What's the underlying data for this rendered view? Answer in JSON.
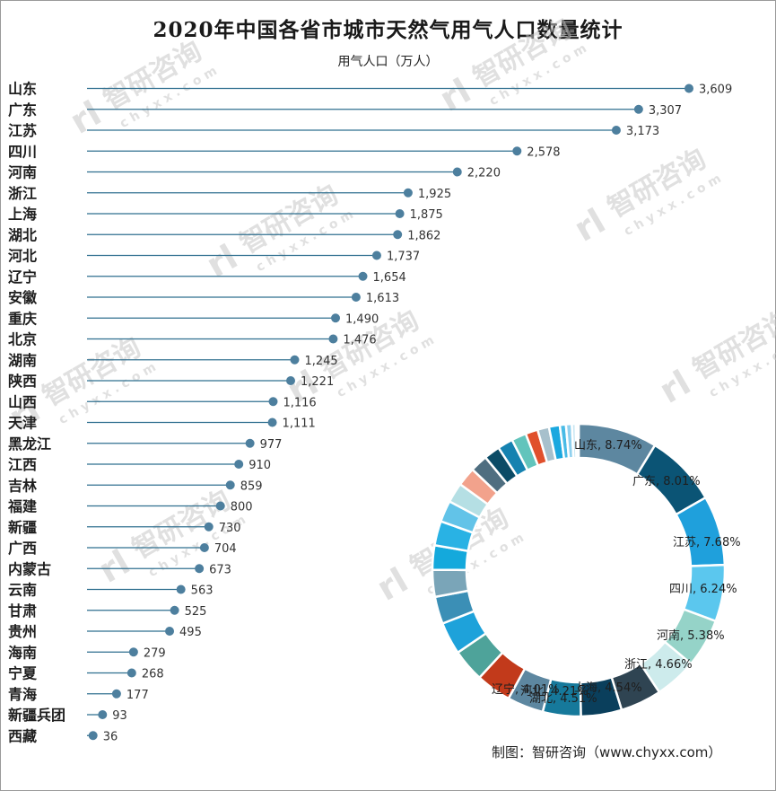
{
  "title": "2020年中国各省市城市天然气用气人口数量统计",
  "unit_label": "用气人口（万人）",
  "source": "制图：智研咨询（www.chyxx.com）",
  "watermark": {
    "brand": "智研咨询",
    "url": "c h y x x . c o m"
  },
  "colors": {
    "line": "#2f6f8f",
    "dot": "#4d7f9e",
    "donut": [
      "#5d87a0",
      "#0b5475",
      "#1fa0dc",
      "#5bc7ee",
      "#95d3c8",
      "#cdebec",
      "#2f4452",
      "#0a3f5c",
      "#16799b",
      "#5d87a0",
      "#c23a1b",
      "#4ea39a",
      "#1ea2da",
      "#3b8fb6",
      "#7aa5b8",
      "#14a9dc",
      "#29b2e4",
      "#62c3e8",
      "#b5dfe4",
      "#f2a28c",
      "#4f6e80",
      "#0b4b66",
      "#1582b0",
      "#62c4bc",
      "#e0502c",
      "#a7c0cc",
      "#1ba8df",
      "#49bbe6",
      "#8fd0ee",
      "#c8e6f2"
    ]
  },
  "chart_data": {
    "type": "bar",
    "categories": [
      "山东",
      "广东",
      "江苏",
      "四川",
      "河南",
      "浙江",
      "上海",
      "湖北",
      "河北",
      "辽宁",
      "安徽",
      "重庆",
      "北京",
      "湖南",
      "陕西",
      "山西",
      "天津",
      "黑龙江",
      "江西",
      "吉林",
      "福建",
      "新疆",
      "广西",
      "内蒙古",
      "云南",
      "甘肃",
      "贵州",
      "海南",
      "宁夏",
      "青海",
      "新疆兵团",
      "西藏"
    ],
    "values": [
      3609,
      3307,
      3173,
      2578,
      2220,
      1925,
      1875,
      1862,
      1737,
      1654,
      1613,
      1490,
      1476,
      1245,
      1221,
      1116,
      1111,
      977,
      910,
      859,
      800,
      730,
      704,
      673,
      563,
      525,
      495,
      279,
      268,
      177,
      93,
      36
    ],
    "value_labels": [
      "3,609",
      "3,307",
      "3,173",
      "2,578",
      "2,220",
      "1,925",
      "1,875",
      "1,862",
      "1,737",
      "1,654",
      "1,613",
      "1,490",
      "1,476",
      "1,245",
      "1,221",
      "1,116",
      "1,111",
      "977",
      "910",
      "859",
      "800",
      "730",
      "704",
      "673",
      "563",
      "525",
      "495",
      "279",
      "268",
      "177",
      "93",
      "36"
    ],
    "donut": {
      "type": "pie",
      "labels": [
        {
          "text": "山东, 8.74%"
        },
        {
          "text": "广东, 8.01%"
        },
        {
          "text": "江苏, 7.68%"
        },
        {
          "text": "四川, 6.24%"
        },
        {
          "text": "河南, 5.38%"
        },
        {
          "text": "浙江, 4.66%"
        },
        {
          "text": "上海, 4.54%"
        },
        {
          "text": "湖北, 4.51%"
        },
        {
          "text": "河北, 4.21%"
        },
        {
          "text": "辽宁, 4.01%"
        }
      ]
    }
  }
}
